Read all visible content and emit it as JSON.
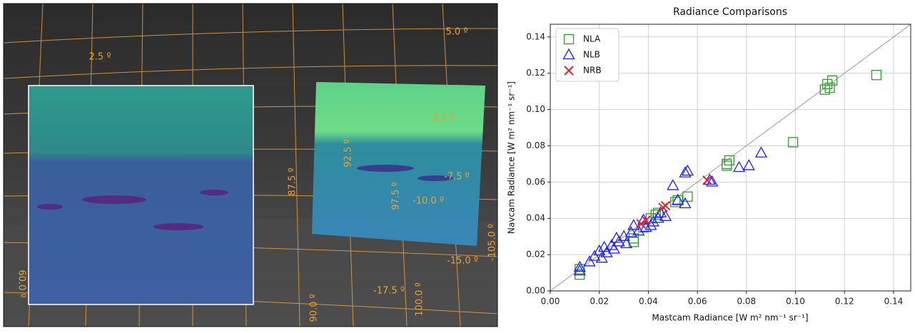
{
  "image_labels": [
    "5.0 º",
    "2.5 º",
    "87.5 º",
    "92.5 º",
    "97.5 º",
    "-10.0 º",
    "-7.5 º",
    "-2.5 º",
    "-15.0 º",
    "-17.5 º",
    "100.0 º",
    "90.0 º",
    "-105.0 º",
    "60.0 º"
  ],
  "chart_data": {
    "type": "scatter",
    "title": "Radiance Comparisons",
    "x_label": "Mastcam Radiance [W m² nm⁻¹ sr⁻¹]",
    "y_label": "Navcam Radiance [W m² nm⁻¹ sr⁻¹]",
    "xlim": [
      0,
      0.147
    ],
    "ylim": [
      0,
      0.147
    ],
    "xticks": [
      {
        "value": 0,
        "label": "0.00"
      },
      {
        "value": 0.02,
        "label": "0.02"
      },
      {
        "value": 0.04,
        "label": "0.04"
      },
      {
        "value": 0.06,
        "label": "0.06"
      },
      {
        "value": 0.08,
        "label": "0.08"
      },
      {
        "value": 0.1,
        "label": "0.10"
      },
      {
        "value": 0.12,
        "label": "0.12"
      },
      {
        "value": 0.14,
        "label": "0.14"
      }
    ],
    "yticks": [
      {
        "value": 0,
        "label": "0.00"
      },
      {
        "value": 0.02,
        "label": "0.02"
      },
      {
        "value": 0.04,
        "label": "0.04"
      },
      {
        "value": 0.06,
        "label": "0.06"
      },
      {
        "value": 0.08,
        "label": "0.08"
      },
      {
        "value": 0.1,
        "label": "0.10"
      },
      {
        "value": 0.12,
        "label": "0.12"
      },
      {
        "value": 0.14,
        "label": "0.14"
      }
    ],
    "grid": true,
    "diagonal": true,
    "legend": "upper-left",
    "series": [
      {
        "name": "NLA",
        "color": "#2ca02c",
        "marker": "square",
        "x": [
          0.012,
          0.012,
          0.034,
          0.034,
          0.038,
          0.041,
          0.043,
          0.044,
          0.051,
          0.052,
          0.056,
          0.072,
          0.073,
          0.072,
          0.099,
          0.112,
          0.113,
          0.114,
          0.115,
          0.133
        ],
        "values": [
          0.009,
          0.012,
          0.027,
          0.029,
          0.035,
          0.04,
          0.042,
          0.043,
          0.049,
          0.05,
          0.052,
          0.069,
          0.072,
          0.07,
          0.082,
          0.111,
          0.114,
          0.112,
          0.116,
          0.119
        ]
      },
      {
        "name": "NLB",
        "color": "#1f1fff",
        "marker": "triangle",
        "x": [
          0.012,
          0.012,
          0.016,
          0.018,
          0.02,
          0.021,
          0.022,
          0.023,
          0.025,
          0.026,
          0.027,
          0.028,
          0.03,
          0.031,
          0.033,
          0.034,
          0.036,
          0.038,
          0.039,
          0.041,
          0.042,
          0.044,
          0.045,
          0.047,
          0.05,
          0.052,
          0.055,
          0.056,
          0.055,
          0.065,
          0.066,
          0.077,
          0.081,
          0.086
        ],
        "values": [
          0.011,
          0.013,
          0.016,
          0.019,
          0.022,
          0.018,
          0.024,
          0.021,
          0.025,
          0.023,
          0.029,
          0.027,
          0.03,
          0.026,
          0.032,
          0.036,
          0.033,
          0.039,
          0.035,
          0.036,
          0.038,
          0.04,
          0.043,
          0.041,
          0.058,
          0.05,
          0.065,
          0.066,
          0.048,
          0.061,
          0.06,
          0.068,
          0.069,
          0.076
        ]
      },
      {
        "name": "NRB",
        "color": "#ee2222",
        "marker": "x",
        "x": [
          0.037,
          0.039,
          0.046,
          0.047,
          0.064
        ],
        "values": [
          0.037,
          0.039,
          0.046,
          0.047,
          0.061
        ]
      }
    ]
  }
}
